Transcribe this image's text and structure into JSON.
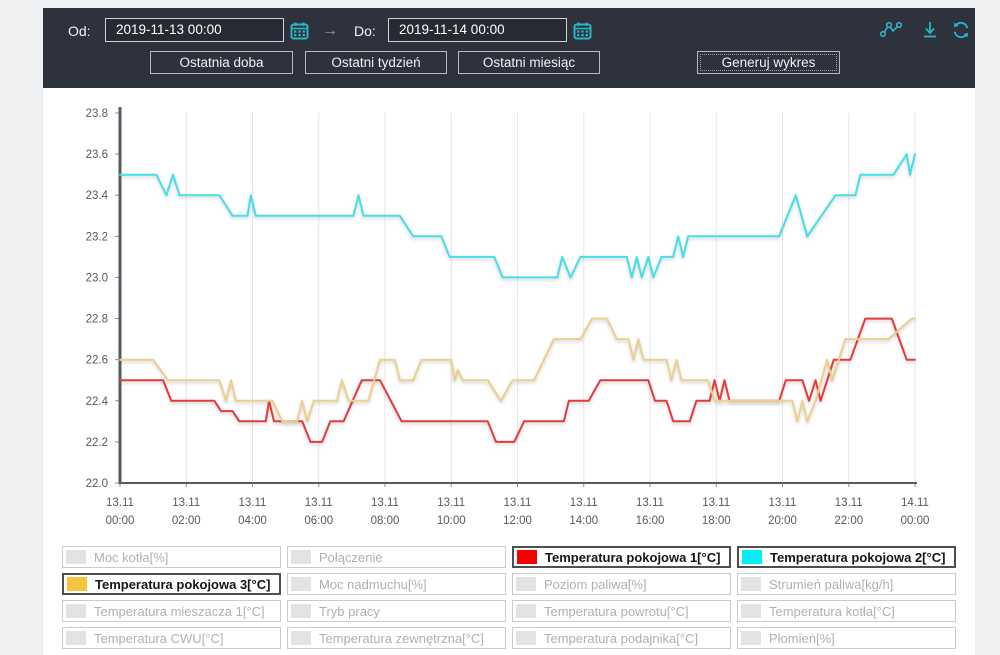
{
  "header": {
    "from_label": "Od:",
    "from_value": "2019-11-13 00:00",
    "arrow": "→",
    "to_label": "Do:",
    "to_value": "2019-11-14 00:00",
    "quick_buttons": [
      "Ostatnia doba",
      "Ostatni tydzień",
      "Ostatni miesiąc"
    ],
    "generate_button": "Generuj wykres",
    "icons": [
      "share-nodes-icon",
      "download-icon",
      "refresh-icon"
    ],
    "accent_color": "#2ab5c4",
    "background_color": "#2d323c"
  },
  "chart_data": {
    "type": "line",
    "title": "",
    "xlabel": "",
    "ylabel": "",
    "grid": "vertical",
    "ylim": [
      22.0,
      23.8
    ],
    "xlim_hours": [
      0,
      24
    ],
    "y_ticks": [
      "22.0",
      "22.2",
      "22.4",
      "22.6",
      "22.8",
      "23.0",
      "23.2",
      "23.4",
      "23.6",
      "23.8"
    ],
    "x_ticks": [
      {
        "date": "13.11",
        "time": "00:00"
      },
      {
        "date": "13.11",
        "time": "02:00"
      },
      {
        "date": "13.11",
        "time": "04:00"
      },
      {
        "date": "13.11",
        "time": "06:00"
      },
      {
        "date": "13.11",
        "time": "08:00"
      },
      {
        "date": "13.11",
        "time": "10:00"
      },
      {
        "date": "13.11",
        "time": "12:00"
      },
      {
        "date": "13.11",
        "time": "14:00"
      },
      {
        "date": "13.11",
        "time": "16:00"
      },
      {
        "date": "13.11",
        "time": "18:00"
      },
      {
        "date": "13.11",
        "time": "20:00"
      },
      {
        "date": "13.11",
        "time": "22:00"
      },
      {
        "date": "14.11",
        "time": "00:00"
      }
    ],
    "series": [
      {
        "name": "Temperatura pokojowa 1[°C]",
        "color": "#e43a3a",
        "points": [
          [
            0,
            22.5
          ],
          [
            1.3,
            22.5
          ],
          [
            1.55,
            22.4
          ],
          [
            2.85,
            22.4
          ],
          [
            3.05,
            22.35
          ],
          [
            3.4,
            22.35
          ],
          [
            3.6,
            22.3
          ],
          [
            4.4,
            22.3
          ],
          [
            4.5,
            22.4
          ],
          [
            4.65,
            22.3
          ],
          [
            5.5,
            22.3
          ],
          [
            5.75,
            22.2
          ],
          [
            6.1,
            22.2
          ],
          [
            6.35,
            22.3
          ],
          [
            6.75,
            22.3
          ],
          [
            7.3,
            22.5
          ],
          [
            7.85,
            22.5
          ],
          [
            8.5,
            22.3
          ],
          [
            11.1,
            22.3
          ],
          [
            11.35,
            22.2
          ],
          [
            11.9,
            22.2
          ],
          [
            12.2,
            22.3
          ],
          [
            13.4,
            22.3
          ],
          [
            13.55,
            22.4
          ],
          [
            14.15,
            22.4
          ],
          [
            14.5,
            22.5
          ],
          [
            15.95,
            22.5
          ],
          [
            16.15,
            22.4
          ],
          [
            16.5,
            22.4
          ],
          [
            16.7,
            22.3
          ],
          [
            17.2,
            22.3
          ],
          [
            17.4,
            22.4
          ],
          [
            17.8,
            22.4
          ],
          [
            17.95,
            22.5
          ],
          [
            18.1,
            22.4
          ],
          [
            18.25,
            22.5
          ],
          [
            18.4,
            22.4
          ],
          [
            19.9,
            22.4
          ],
          [
            20.1,
            22.5
          ],
          [
            20.6,
            22.5
          ],
          [
            20.8,
            22.4
          ],
          [
            21.0,
            22.5
          ],
          [
            21.15,
            22.4
          ],
          [
            21.55,
            22.6
          ],
          [
            22.05,
            22.6
          ],
          [
            22.5,
            22.8
          ],
          [
            23.3,
            22.8
          ],
          [
            23.75,
            22.6
          ],
          [
            24,
            22.6
          ]
        ]
      },
      {
        "name": "Temperatura pokojowa 2[°C]",
        "color": "#44dfe7",
        "points": [
          [
            0,
            23.5
          ],
          [
            1.1,
            23.5
          ],
          [
            1.4,
            23.4
          ],
          [
            1.6,
            23.5
          ],
          [
            1.8,
            23.4
          ],
          [
            3.0,
            23.4
          ],
          [
            3.4,
            23.3
          ],
          [
            3.85,
            23.3
          ],
          [
            3.95,
            23.4
          ],
          [
            4.1,
            23.3
          ],
          [
            7.05,
            23.3
          ],
          [
            7.2,
            23.4
          ],
          [
            7.35,
            23.3
          ],
          [
            8.45,
            23.3
          ],
          [
            8.85,
            23.2
          ],
          [
            9.7,
            23.2
          ],
          [
            9.95,
            23.1
          ],
          [
            11.3,
            23.1
          ],
          [
            11.55,
            23.0
          ],
          [
            13.2,
            23.0
          ],
          [
            13.35,
            23.1
          ],
          [
            13.6,
            23.0
          ],
          [
            13.9,
            23.1
          ],
          [
            15.3,
            23.1
          ],
          [
            15.45,
            23.0
          ],
          [
            15.6,
            23.1
          ],
          [
            15.75,
            23.0
          ],
          [
            15.95,
            23.1
          ],
          [
            16.1,
            23.0
          ],
          [
            16.35,
            23.1
          ],
          [
            16.7,
            23.1
          ],
          [
            16.85,
            23.2
          ],
          [
            17.0,
            23.1
          ],
          [
            17.15,
            23.2
          ],
          [
            19.9,
            23.2
          ],
          [
            20.4,
            23.4
          ],
          [
            20.75,
            23.2
          ],
          [
            21.6,
            23.4
          ],
          [
            22.2,
            23.4
          ],
          [
            22.35,
            23.5
          ],
          [
            23.35,
            23.5
          ],
          [
            23.75,
            23.6
          ],
          [
            23.85,
            23.5
          ],
          [
            24,
            23.6
          ]
        ]
      },
      {
        "name": "Temperatura pokojowa 3[°C]",
        "color": "#ecd08b",
        "points": [
          [
            0,
            22.6
          ],
          [
            1.0,
            22.6
          ],
          [
            1.45,
            22.5
          ],
          [
            3.0,
            22.5
          ],
          [
            3.2,
            22.4
          ],
          [
            3.35,
            22.5
          ],
          [
            3.5,
            22.4
          ],
          [
            4.6,
            22.4
          ],
          [
            4.9,
            22.3
          ],
          [
            5.35,
            22.3
          ],
          [
            5.5,
            22.4
          ],
          [
            5.65,
            22.3
          ],
          [
            5.85,
            22.4
          ],
          [
            6.55,
            22.4
          ],
          [
            6.7,
            22.5
          ],
          [
            6.9,
            22.4
          ],
          [
            7.5,
            22.4
          ],
          [
            7.85,
            22.6
          ],
          [
            8.3,
            22.6
          ],
          [
            8.45,
            22.5
          ],
          [
            8.85,
            22.5
          ],
          [
            9.1,
            22.6
          ],
          [
            10.0,
            22.6
          ],
          [
            10.1,
            22.5
          ],
          [
            10.2,
            22.55
          ],
          [
            10.35,
            22.5
          ],
          [
            11.1,
            22.5
          ],
          [
            11.5,
            22.4
          ],
          [
            11.85,
            22.5
          ],
          [
            12.5,
            22.5
          ],
          [
            13.1,
            22.7
          ],
          [
            13.9,
            22.7
          ],
          [
            14.25,
            22.8
          ],
          [
            14.7,
            22.8
          ],
          [
            15.0,
            22.7
          ],
          [
            15.35,
            22.7
          ],
          [
            15.5,
            22.6
          ],
          [
            15.65,
            22.7
          ],
          [
            15.8,
            22.6
          ],
          [
            16.5,
            22.6
          ],
          [
            16.65,
            22.5
          ],
          [
            16.8,
            22.6
          ],
          [
            16.95,
            22.5
          ],
          [
            17.75,
            22.5
          ],
          [
            17.95,
            22.4
          ],
          [
            20.3,
            22.4
          ],
          [
            20.45,
            22.3
          ],
          [
            20.6,
            22.4
          ],
          [
            20.75,
            22.3
          ],
          [
            21.0,
            22.4
          ],
          [
            21.35,
            22.6
          ],
          [
            21.5,
            22.5
          ],
          [
            21.9,
            22.7
          ],
          [
            23.2,
            22.7
          ],
          [
            23.9,
            22.8
          ],
          [
            24,
            22.8
          ]
        ]
      }
    ]
  },
  "legend": {
    "items": [
      {
        "label": "Moc kotła[%]",
        "active": false,
        "color": null
      },
      {
        "label": "Połączenie",
        "active": false,
        "color": null
      },
      {
        "label": "Temperatura pokojowa 1[°C]",
        "active": true,
        "color": "#f60000"
      },
      {
        "label": "Temperatura pokojowa 2[°C]",
        "active": true,
        "color": "#00f0f0"
      },
      {
        "label": "Temperatura pokojowa 3[°C]",
        "active": true,
        "color": "#f5c63d"
      },
      {
        "label": "Moc nadmuchu[%]",
        "active": false,
        "color": null
      },
      {
        "label": "Poziom paliwa[%]",
        "active": false,
        "color": null
      },
      {
        "label": "Strumień paliwa[kg/h]",
        "active": false,
        "color": null
      },
      {
        "label": "Temperatura mieszacza 1[°C]",
        "active": false,
        "color": null
      },
      {
        "label": "Tryb pracy",
        "active": false,
        "color": null
      },
      {
        "label": "Temperatura powrotu[°C]",
        "active": false,
        "color": null
      },
      {
        "label": "Temperatura kotła[°C]",
        "active": false,
        "color": null
      },
      {
        "label": "Temperatura CWU[°C]",
        "active": false,
        "color": null
      },
      {
        "label": "Temperatura zewnętrzna[°C]",
        "active": false,
        "color": null
      },
      {
        "label": "Temperatura podajnika[°C]",
        "active": false,
        "color": null
      },
      {
        "label": "Płomień[%]",
        "active": false,
        "color": null
      }
    ]
  }
}
